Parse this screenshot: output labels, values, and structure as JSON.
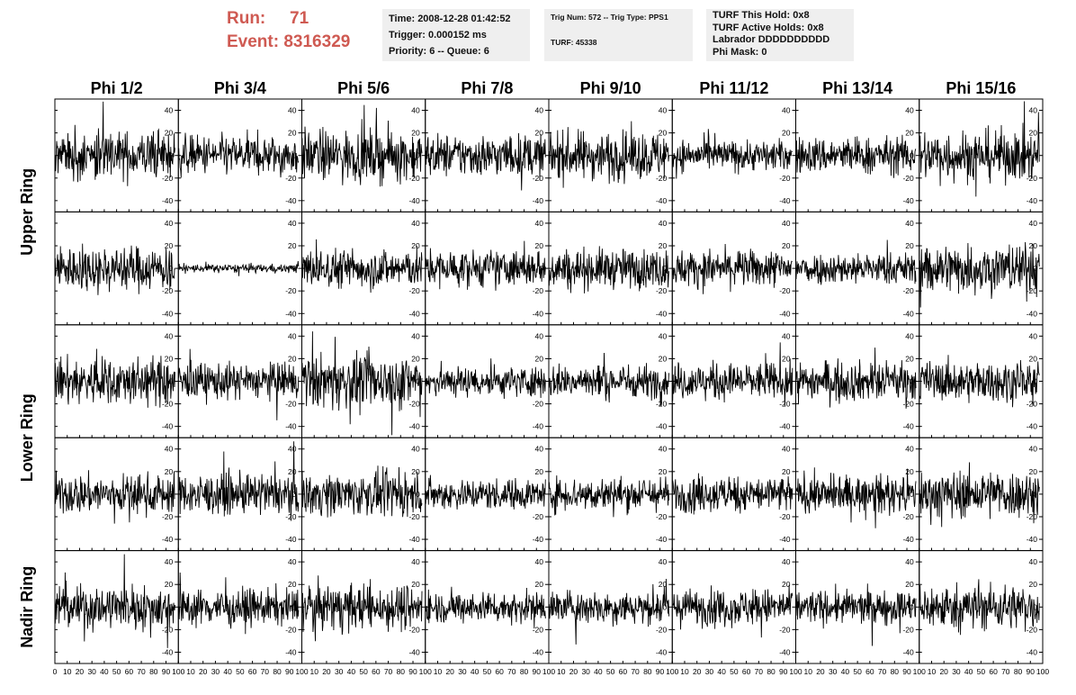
{
  "header": {
    "run_label": "Run:",
    "run_value": "71",
    "event_label": "Event:",
    "event_value": "8316329"
  },
  "info_box_time": {
    "line1": "Time: 2008-12-28 01:42:52",
    "line2": "Trigger: 0.000152 ms",
    "line3": "Priority: 6 -- Queue: 6"
  },
  "info_box_trig": {
    "line1": "Trig Num: 572 -- Trig Type: PPS1",
    "line2": "TURF: 45338"
  },
  "info_box_turf": {
    "line1": "TURF This Hold: 0x8",
    "line2": "TURF Active Holds: 0x8",
    "line3": "Labrador DDDDDDDDDD",
    "line4": "Phi Mask: 0"
  },
  "chart_data": {
    "type": "line",
    "columns": [
      "Phi 1/2",
      "Phi 3/4",
      "Phi 5/6",
      "Phi 7/8",
      "Phi 9/10",
      "Phi 11/12",
      "Phi 13/14",
      "Phi 15/16"
    ],
    "rows": [
      "Upper Ring",
      "Upper Ring",
      "Lower Ring",
      "Lower Ring",
      "Nadir Ring"
    ],
    "row_labels": [
      "Upper Ring",
      "Lower Ring",
      "Nadir Ring"
    ],
    "xlim": [
      0,
      100
    ],
    "ylim": [
      -50,
      50
    ],
    "x_ticks": [
      0,
      10,
      20,
      30,
      40,
      50,
      60,
      70,
      80,
      90,
      100
    ],
    "y_ticks": [
      -40,
      -20,
      0,
      20,
      40
    ],
    "samples_per_trace": 256,
    "trace_amplitudes": [
      [
        17,
        14,
        18,
        15,
        17,
        11,
        13,
        18
      ],
      [
        16,
        3,
        14,
        13,
        14,
        13,
        11,
        18
      ],
      [
        17,
        13,
        19,
        11,
        12,
        13,
        14,
        14
      ],
      [
        14,
        14,
        15,
        11,
        12,
        13,
        13,
        17
      ],
      [
        16,
        13,
        16,
        11,
        12,
        13,
        12,
        16
      ]
    ],
    "grid": false
  }
}
